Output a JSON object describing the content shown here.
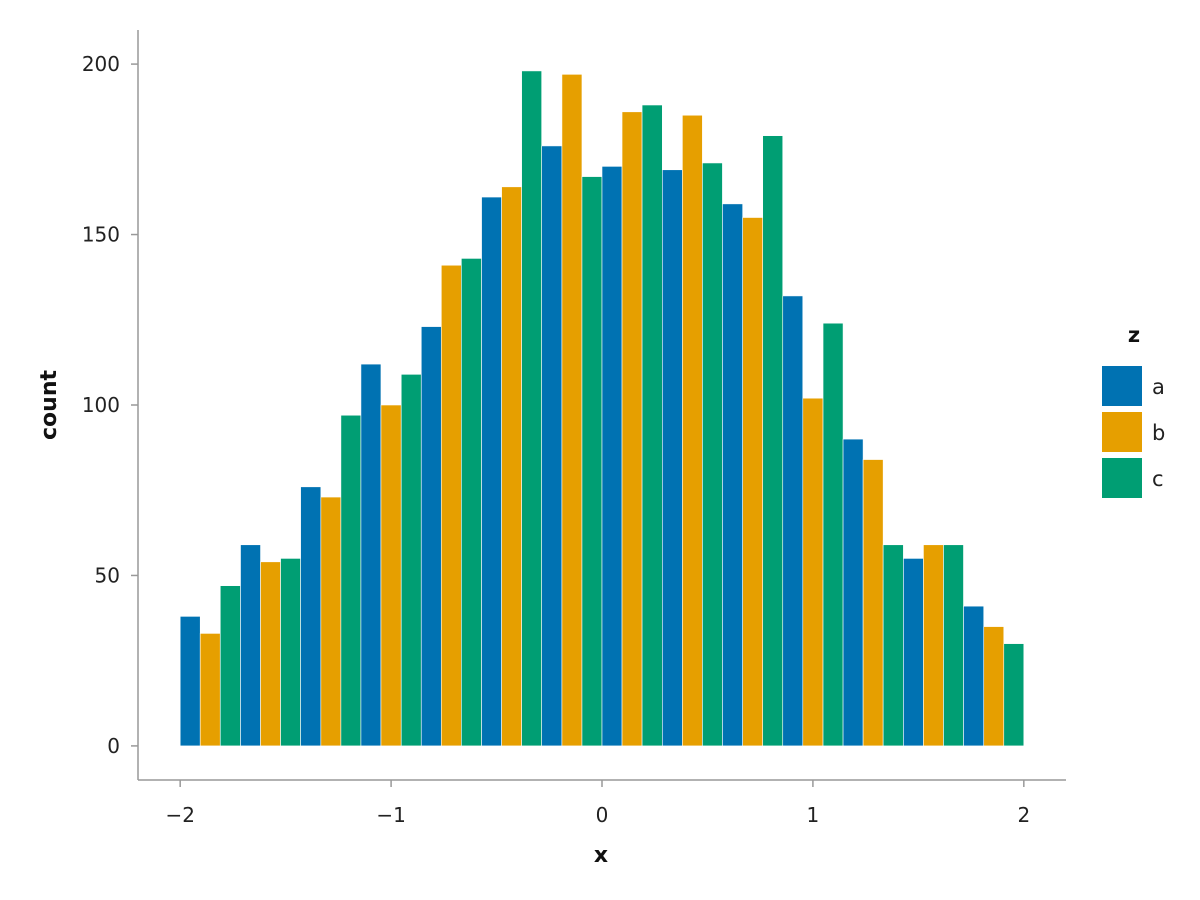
{
  "chart_data": {
    "type": "bar",
    "xlabel": "x",
    "ylabel": "count",
    "xlim": [
      -2.2,
      2.2
    ],
    "ylim": [
      -10,
      210
    ],
    "xticks": [
      -2,
      -1,
      0,
      1,
      2
    ],
    "xtick_labels": [
      "−2",
      "−1",
      "0",
      "1",
      "2"
    ],
    "yticks": [
      0,
      50,
      100,
      150,
      200
    ],
    "ytick_labels": [
      "0",
      "50",
      "100",
      "150",
      "200"
    ],
    "grid": false,
    "legend": {
      "title": "z",
      "position": "right",
      "entries": [
        {
          "label": "a",
          "color": "#0072B2"
        },
        {
          "label": "b",
          "color": "#E69F00"
        },
        {
          "label": "c",
          "color": "#009E73"
        }
      ]
    },
    "bars": [
      {
        "x0": -2.0,
        "x1": -1.905,
        "y": 38,
        "series": "a"
      },
      {
        "x0": -1.905,
        "x1": -1.81,
        "y": 33,
        "series": "b"
      },
      {
        "x0": -1.81,
        "x1": -1.714,
        "y": 47,
        "series": "c"
      },
      {
        "x0": -1.714,
        "x1": -1.619,
        "y": 59,
        "series": "a"
      },
      {
        "x0": -1.619,
        "x1": -1.524,
        "y": 54,
        "series": "b"
      },
      {
        "x0": -1.524,
        "x1": -1.429,
        "y": 55,
        "series": "c"
      },
      {
        "x0": -1.429,
        "x1": -1.333,
        "y": 76,
        "series": "a"
      },
      {
        "x0": -1.333,
        "x1": -1.238,
        "y": 73,
        "series": "b"
      },
      {
        "x0": -1.238,
        "x1": -1.143,
        "y": 97,
        "series": "c"
      },
      {
        "x0": -1.143,
        "x1": -1.048,
        "y": 112,
        "series": "a"
      },
      {
        "x0": -1.048,
        "x1": -0.952,
        "y": 100,
        "series": "b"
      },
      {
        "x0": -0.952,
        "x1": -0.857,
        "y": 109,
        "series": "c"
      },
      {
        "x0": -0.857,
        "x1": -0.762,
        "y": 123,
        "series": "a"
      },
      {
        "x0": -0.762,
        "x1": -0.667,
        "y": 141,
        "series": "b"
      },
      {
        "x0": -0.667,
        "x1": -0.571,
        "y": 143,
        "series": "c"
      },
      {
        "x0": -0.571,
        "x1": -0.476,
        "y": 161,
        "series": "a"
      },
      {
        "x0": -0.476,
        "x1": -0.381,
        "y": 164,
        "series": "b"
      },
      {
        "x0": -0.381,
        "x1": -0.286,
        "y": 198,
        "series": "c"
      },
      {
        "x0": -0.286,
        "x1": -0.19,
        "y": 176,
        "series": "a"
      },
      {
        "x0": -0.19,
        "x1": -0.095,
        "y": 197,
        "series": "b"
      },
      {
        "x0": -0.095,
        "x1": 0.0,
        "y": 167,
        "series": "c"
      },
      {
        "x0": 0.0,
        "x1": 0.095,
        "y": 170,
        "series": "a"
      },
      {
        "x0": 0.095,
        "x1": 0.19,
        "y": 186,
        "series": "b"
      },
      {
        "x0": 0.19,
        "x1": 0.286,
        "y": 188,
        "series": "c"
      },
      {
        "x0": 0.286,
        "x1": 0.381,
        "y": 169,
        "series": "a"
      },
      {
        "x0": 0.381,
        "x1": 0.476,
        "y": 185,
        "series": "b"
      },
      {
        "x0": 0.476,
        "x1": 0.571,
        "y": 171,
        "series": "c"
      },
      {
        "x0": 0.571,
        "x1": 0.667,
        "y": 159,
        "series": "a"
      },
      {
        "x0": 0.667,
        "x1": 0.762,
        "y": 155,
        "series": "b"
      },
      {
        "x0": 0.762,
        "x1": 0.857,
        "y": 179,
        "series": "c"
      },
      {
        "x0": 0.857,
        "x1": 0.952,
        "y": 132,
        "series": "a"
      },
      {
        "x0": 0.952,
        "x1": 1.048,
        "y": 102,
        "series": "b"
      },
      {
        "x0": 1.048,
        "x1": 1.143,
        "y": 124,
        "series": "c"
      },
      {
        "x0": 1.143,
        "x1": 1.238,
        "y": 90,
        "series": "a"
      },
      {
        "x0": 1.238,
        "x1": 1.333,
        "y": 84,
        "series": "b"
      },
      {
        "x0": 1.333,
        "x1": 1.429,
        "y": 59,
        "series": "c"
      },
      {
        "x0": 1.429,
        "x1": 1.524,
        "y": 55,
        "series": "a"
      },
      {
        "x0": 1.524,
        "x1": 1.619,
        "y": 59,
        "series": "b"
      },
      {
        "x0": 1.619,
        "x1": 1.714,
        "y": 59,
        "series": "c"
      },
      {
        "x0": 1.714,
        "x1": 1.81,
        "y": 41,
        "series": "a"
      },
      {
        "x0": 1.81,
        "x1": 1.905,
        "y": 35,
        "series": "b"
      },
      {
        "x0": 1.905,
        "x1": 2.0,
        "y": 30,
        "series": "c"
      }
    ]
  }
}
